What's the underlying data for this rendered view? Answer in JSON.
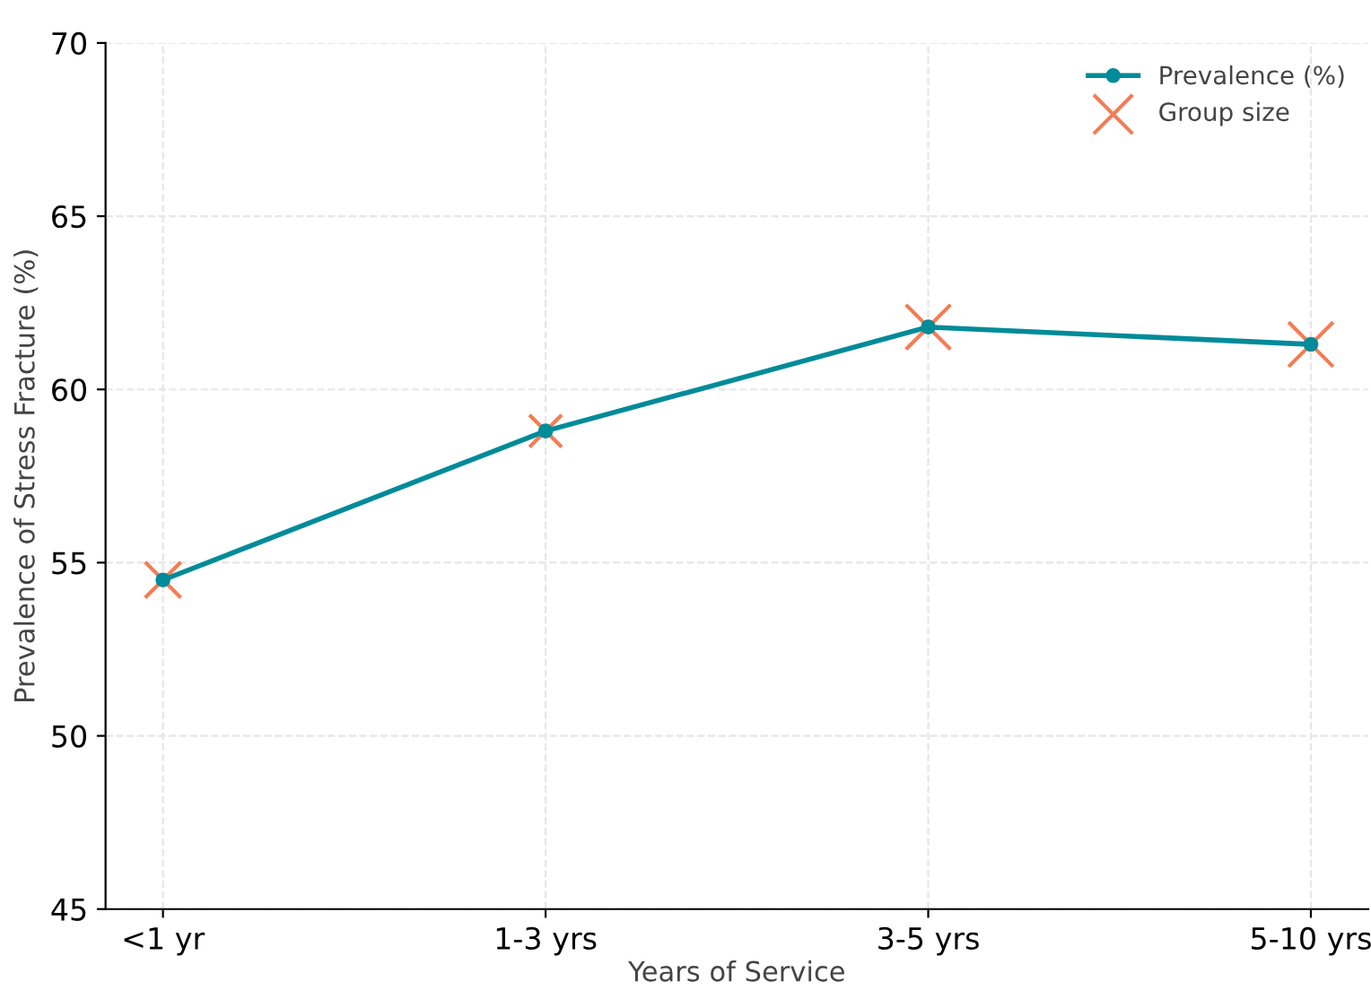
{
  "chart_data": {
    "type": "line",
    "xlabel": "Years of Service",
    "ylabel": "Prevalence of Stress Fracture (%)",
    "categories": [
      "<1 yr",
      "1-3 yrs",
      "3-5 yrs",
      "5-10 yrs"
    ],
    "series": [
      {
        "name": "Prevalence (%)",
        "color": "#008b99",
        "marker": "circle",
        "line_style": "solid",
        "values": [
          54.5,
          58.8,
          61.8,
          61.3
        ]
      },
      {
        "name": "Group size",
        "type": "bubble",
        "color": "#f47c54",
        "marker": "cross",
        "values": [
          54.5,
          58.8,
          61.8,
          61.3
        ],
        "sizes": [
          0.64,
          0.52,
          1,
          1
        ]
      }
    ],
    "ylim": [
      45,
      70
    ],
    "yticks": [
      45,
      50,
      55,
      60,
      65,
      70
    ],
    "grid": true,
    "legend": "top right"
  }
}
